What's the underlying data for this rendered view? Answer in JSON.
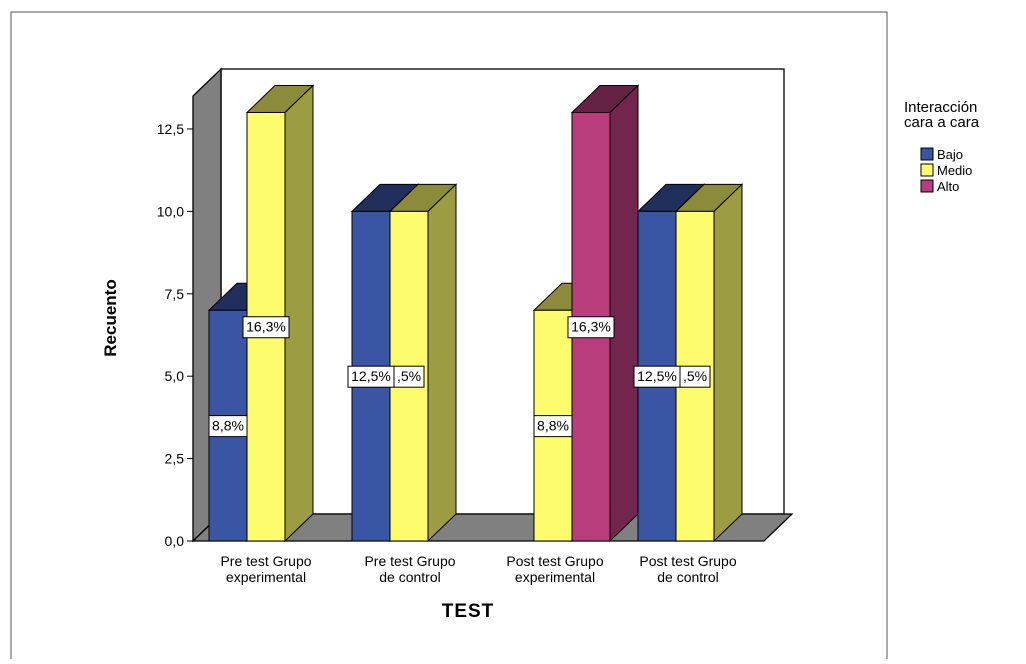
{
  "chart_data": {
    "type": "bar",
    "style": "3d-clustered",
    "xlabel": "TEST",
    "ylabel": "Recuento",
    "ylim": [
      0,
      13.5
    ],
    "yticks": [
      "0,0",
      "2,5",
      "5,0",
      "7,5",
      "10,0",
      "12,5"
    ],
    "categories": [
      [
        "Pre test Grupo",
        "experimental"
      ],
      [
        "Pre test Grupo",
        "de control"
      ],
      [
        "Post test Grupo",
        "experimental"
      ],
      [
        "Post test Grupo",
        "de control"
      ]
    ],
    "legend": {
      "title": [
        "Interacción",
        "cara a cara"
      ],
      "position": "right"
    },
    "series": [
      {
        "name": "Bajo",
        "color": "#3b55a5",
        "values": [
          7,
          10,
          null,
          10
        ],
        "labels": [
          "8,8%",
          "12,5%",
          "",
          "12,5%"
        ]
      },
      {
        "name": "Medio",
        "color": "#fcfc6c",
        "values": [
          13,
          10,
          7,
          10
        ],
        "labels": [
          "16,3%",
          ",5%",
          "8,8%",
          ",5%"
        ]
      },
      {
        "name": "Alto",
        "color": "#b93d7c",
        "values": [
          null,
          null,
          13,
          null
        ],
        "labels": [
          "",
          "",
          "16,3%",
          ""
        ]
      }
    ]
  }
}
